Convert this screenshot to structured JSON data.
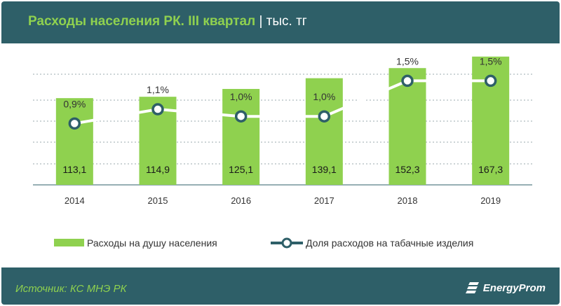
{
  "header": {
    "title": "Расходы населения РК. III квартал",
    "unit": "| тыс. тг"
  },
  "footer": {
    "source": "Источник: КС МНЭ РК",
    "brand": "EnergyProm"
  },
  "colors": {
    "background": "#2e5f68",
    "accent": "#8fd14f",
    "bar": "#8fd14f",
    "line": "#ffffff",
    "line_marker_stroke": "#2e5f68"
  },
  "chart_data": {
    "type": "bar",
    "categories": [
      "2014",
      "2015",
      "2016",
      "2017",
      "2018",
      "2019"
    ],
    "series": [
      {
        "name": "Расходы на душу населения",
        "type": "bar",
        "values": [
          113.1,
          114.9,
          125.1,
          139.1,
          152.3,
          167.3
        ],
        "labels": [
          "113,1",
          "114,9",
          "125,1",
          "139,1",
          "152,3",
          "167,3"
        ]
      },
      {
        "name": "Доля расходов на табачные изделия",
        "type": "line",
        "values": [
          0.9,
          1.1,
          1.0,
          1.0,
          1.5,
          1.5
        ],
        "labels": [
          "0,9%",
          "1,1%",
          "1,0%",
          "1,0%",
          "1,5%",
          "1,5%"
        ]
      }
    ],
    "title": "Расходы населения РК. III квартал",
    "unit": "тыс. тг",
    "legend_position": "bottom",
    "grid": true
  }
}
